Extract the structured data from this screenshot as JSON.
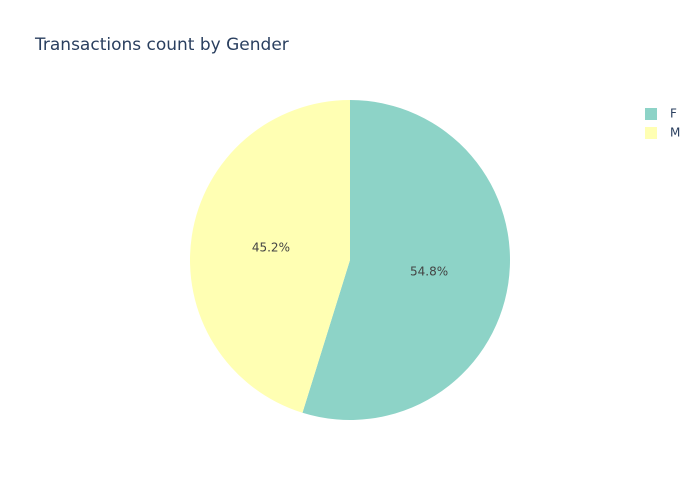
{
  "chart_data": {
    "type": "pie",
    "title": "Transactions count by Gender",
    "categories": [
      "F",
      "M"
    ],
    "values": [
      54.8,
      45.2
    ],
    "value_labels": [
      "54.8%",
      "45.2%"
    ],
    "colors": [
      "#8dd3c7",
      "#ffffb3"
    ],
    "legend": "top-right"
  }
}
